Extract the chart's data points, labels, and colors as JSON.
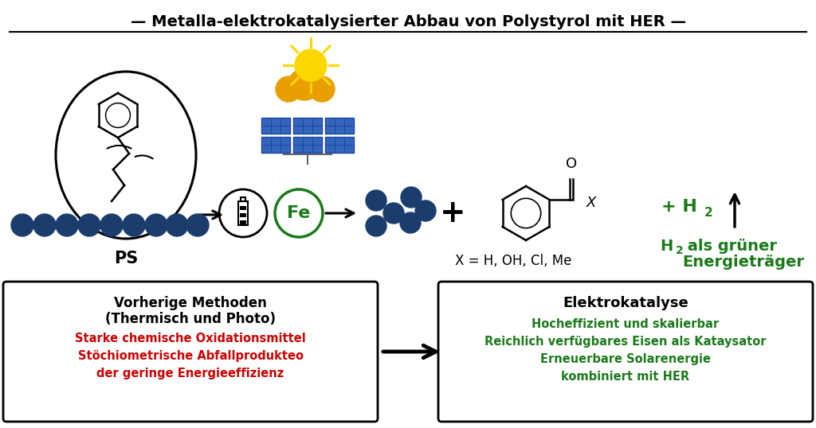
{
  "title": "— Metalla-elektrokatalysierter Abbau von Polystyrol mit HER —",
  "bg_color": "#ffffff",
  "dark_blue": "#1b3d6e",
  "green_color": "#1a7a1a",
  "red_color": "#cc0000",
  "box1_title_line1": "Vorherige Methoden",
  "box1_title_line2": "(Thermisch und Photo)",
  "box1_red_lines": [
    "Starke chemische Oxidationsmittel",
    "Stöchiometrische Abfallprodukteo",
    "der geringe Energieeffizienz"
  ],
  "box2_title": "Elektrokatalyse",
  "box2_green_lines": [
    "Hocheffizient und skalierbar",
    "Reichlich verfügbares Eisen als Kataysator",
    "Erneuerbare Solarenergie",
    "kombiniert mit HER"
  ],
  "ps_label": "PS",
  "x_label": "X = H, OH, Cl, Me",
  "h2_green": "+ H",
  "h2_sub_line1": "H",
  "h2_sub_line2": "als grüner",
  "h2_sub_line3": "Energieträger"
}
